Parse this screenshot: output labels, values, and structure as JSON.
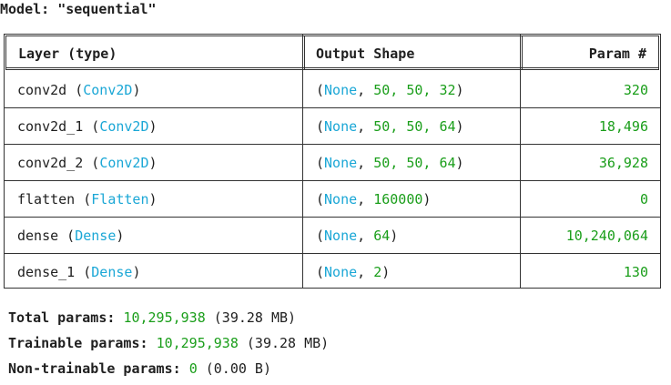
{
  "model": {
    "title_prefix": "Model: ",
    "name": "\"sequential\""
  },
  "table": {
    "headers": {
      "layer": "Layer (type)",
      "output": "Output Shape",
      "params": "Param #"
    },
    "rows": [
      {
        "name": "conv2d",
        "type": "Conv2D",
        "shape_none": "None",
        "shape_rest": "50, 50, 32",
        "params": "320"
      },
      {
        "name": "conv2d_1",
        "type": "Conv2D",
        "shape_none": "None",
        "shape_rest": "50, 50, 64",
        "params": "18,496"
      },
      {
        "name": "conv2d_2",
        "type": "Conv2D",
        "shape_none": "None",
        "shape_rest": "50, 50, 64",
        "params": "36,928"
      },
      {
        "name": "flatten",
        "type": "Flatten",
        "shape_none": "None",
        "shape_rest": "160000",
        "params": "0"
      },
      {
        "name": "dense",
        "type": "Dense",
        "shape_none": "None",
        "shape_rest": "64",
        "params": "10,240,064"
      },
      {
        "name": "dense_1",
        "type": "Dense",
        "shape_none": "None",
        "shape_rest": "2",
        "params": "130"
      }
    ]
  },
  "totals": {
    "total_label": "Total params:",
    "total_value": "10,295,938",
    "total_size": "(39.28 MB)",
    "trainable_label": "Trainable params:",
    "trainable_value": "10,295,938",
    "trainable_size": "(39.28 MB)",
    "non_trainable_label": "Non-trainable params:",
    "non_trainable_value": "0",
    "non_trainable_size": "(0.00 B)"
  },
  "colors": {
    "type_blue": "#1ba7d6",
    "number_green": "#1a9e1a",
    "border": "#333333"
  }
}
